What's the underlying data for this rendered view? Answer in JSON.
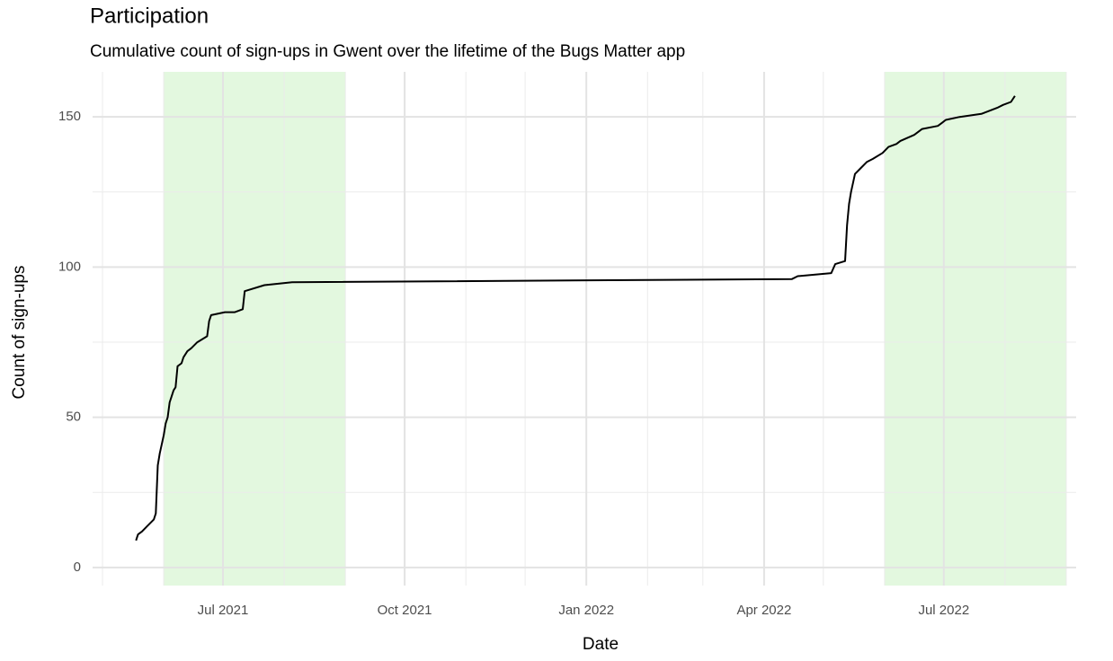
{
  "chart_data": {
    "type": "line",
    "title": "Participation",
    "subtitle": "Cumulative count of sign-ups in Gwent over the lifetime of the Bugs Matter app",
    "x_label": "Date",
    "y_label": "Count of sign-ups",
    "x": [
      "2021-05-18",
      "2021-05-19",
      "2021-05-21",
      "2021-05-24",
      "2021-05-27",
      "2021-05-28",
      "2021-05-29",
      "2021-05-30",
      "2021-05-31",
      "2021-06-01",
      "2021-06-02",
      "2021-06-03",
      "2021-06-04",
      "2021-06-05",
      "2021-06-06",
      "2021-06-07",
      "2021-06-08",
      "2021-06-10",
      "2021-06-11",
      "2021-06-13",
      "2021-06-15",
      "2021-06-18",
      "2021-06-23",
      "2021-06-24",
      "2021-06-25",
      "2021-07-02",
      "2021-07-07",
      "2021-07-11",
      "2021-07-12",
      "2021-07-22",
      "2021-08-05",
      "2022-04-15",
      "2022-04-18",
      "2022-05-05",
      "2022-05-07",
      "2022-05-12",
      "2022-05-13",
      "2022-05-14",
      "2022-05-15",
      "2022-05-16",
      "2022-05-17",
      "2022-05-20",
      "2022-05-23",
      "2022-05-26",
      "2022-05-31",
      "2022-06-03",
      "2022-06-07",
      "2022-06-09",
      "2022-06-16",
      "2022-06-20",
      "2022-06-28",
      "2022-06-30",
      "2022-07-02",
      "2022-07-09",
      "2022-07-20",
      "2022-07-28",
      "2022-07-31",
      "2022-08-04",
      "2022-08-06"
    ],
    "values": [
      9,
      11,
      12,
      14,
      16,
      18,
      34,
      38,
      41,
      44,
      48,
      50,
      55,
      57,
      59,
      60,
      67,
      68,
      70,
      72,
      73,
      75,
      77,
      82,
      84,
      85,
      85,
      86,
      92,
      94,
      95,
      96,
      97,
      98,
      101,
      102,
      114,
      121,
      125,
      128,
      131,
      133,
      135,
      136,
      138,
      140,
      141,
      142,
      144,
      146,
      147,
      148,
      149,
      150,
      151,
      153,
      154,
      155,
      157
    ],
    "color": "#000000",
    "xlim": [
      "2021-04-26",
      "2022-09-06"
    ],
    "xticks": [
      {
        "value": "2021-07-01",
        "label": "Jul 2021"
      },
      {
        "value": "2021-10-01",
        "label": "Oct 2021"
      },
      {
        "value": "2022-01-01",
        "label": "Jan 2022"
      },
      {
        "value": "2022-04-01",
        "label": "Apr 2022"
      },
      {
        "value": "2022-07-01",
        "label": "Jul 2022"
      }
    ],
    "x_minor_ticks": [
      "2021-05-01",
      "2021-06-01",
      "2021-08-01",
      "2021-09-01",
      "2021-11-01",
      "2021-12-01",
      "2022-02-01",
      "2022-03-01",
      "2022-05-01",
      "2022-06-01",
      "2022-08-01",
      "2022-09-01"
    ],
    "ylim": [
      -6,
      165
    ],
    "yticks": [
      0,
      50,
      100,
      150
    ],
    "y_minor_ticks": [
      25,
      75,
      125
    ],
    "grid": true,
    "highlights": [
      {
        "start": "2021-06-01",
        "end": "2021-09-01"
      },
      {
        "start": "2022-06-01",
        "end": "2022-09-01"
      }
    ],
    "highlight_color": "#e0f7db"
  }
}
